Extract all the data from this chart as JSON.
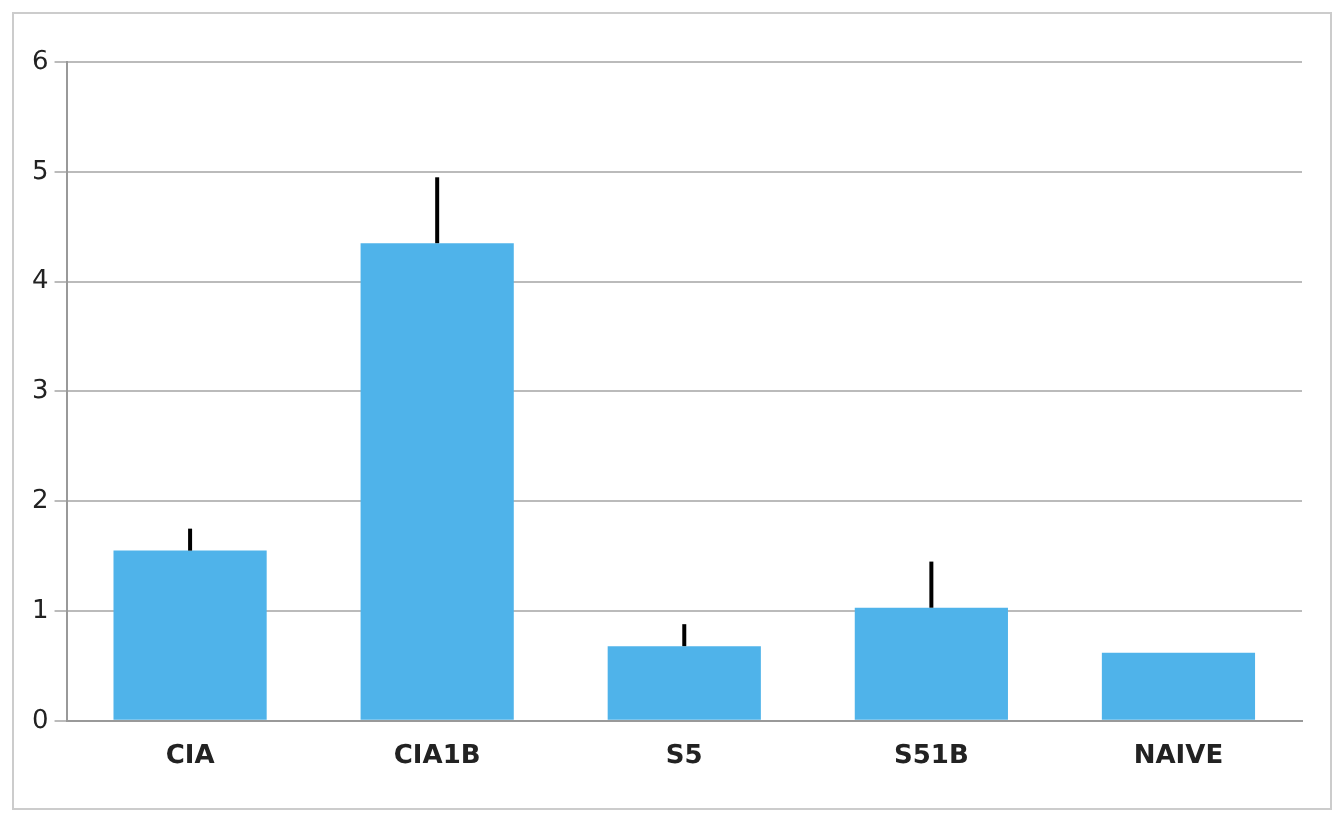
{
  "chart_data": {
    "type": "bar",
    "categories": [
      "CIA",
      "CIA1B",
      "S5",
      "S51B",
      "NAIVE"
    ],
    "values": [
      1.55,
      4.35,
      0.68,
      1.03,
      0.62
    ],
    "errors": [
      [
        1.55,
        1.75
      ],
      [
        4.35,
        4.95
      ],
      [
        0.68,
        0.88
      ],
      [
        1.03,
        1.45
      ],
      null
    ],
    "color": "#4fb3ea",
    "ylim": [
      0,
      6
    ],
    "yticks": [
      0,
      1,
      2,
      3,
      4,
      5,
      6
    ],
    "grid": "y",
    "legend": false
  }
}
